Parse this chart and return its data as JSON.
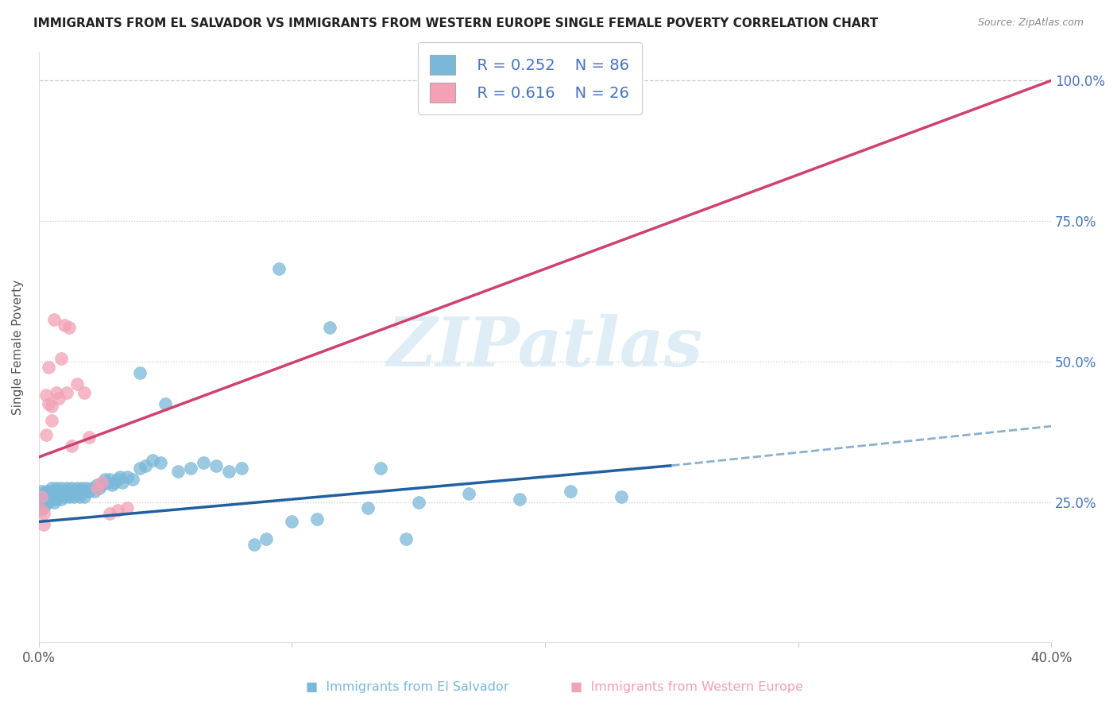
{
  "title": "IMMIGRANTS FROM EL SALVADOR VS IMMIGRANTS FROM WESTERN EUROPE SINGLE FEMALE POVERTY CORRELATION CHART",
  "source": "Source: ZipAtlas.com",
  "ylabel": "Single Female Poverty",
  "legend_r1": "R = 0.252",
  "legend_n1": "N = 86",
  "legend_r2": "R = 0.616",
  "legend_n2": "N = 26",
  "blue_color": "#7ab8d9",
  "pink_color": "#f4a0b5",
  "trend_blue": "#2060a0",
  "trend_pink": "#d04070",
  "dashed_color": "#8ab0d0",
  "watermark": "ZIPatlas",
  "watermark_color": "#c5dff0",
  "xlim": [
    0.0,
    0.4
  ],
  "ylim": [
    0.0,
    1.05
  ],
  "ytick_vals": [
    0.0,
    0.25,
    0.5,
    0.75,
    1.0
  ],
  "ytick_labels_right": [
    "",
    "25.0%",
    "50.0%",
    "75.0%",
    "100.0%"
  ],
  "xtick_labels": [
    "0.0%",
    "40.0%"
  ],
  "bottom_label1": "Immigrants from El Salvador",
  "bottom_label2": "Immigrants from Western Europe",
  "blue_line": [
    0.0,
    0.215,
    0.25,
    0.315
  ],
  "blue_line_dash": [
    0.25,
    0.315,
    0.4,
    0.385
  ],
  "pink_line": [
    0.0,
    0.33,
    0.4,
    1.0
  ],
  "blue_x": [
    0.001,
    0.001,
    0.001,
    0.002,
    0.002,
    0.002,
    0.003,
    0.003,
    0.003,
    0.004,
    0.004,
    0.004,
    0.005,
    0.005,
    0.005,
    0.006,
    0.006,
    0.006,
    0.007,
    0.007,
    0.007,
    0.008,
    0.008,
    0.009,
    0.009,
    0.009,
    0.01,
    0.01,
    0.011,
    0.011,
    0.012,
    0.012,
    0.013,
    0.013,
    0.014,
    0.014,
    0.015,
    0.015,
    0.016,
    0.016,
    0.017,
    0.018,
    0.018,
    0.019,
    0.02,
    0.021,
    0.022,
    0.023,
    0.024,
    0.025,
    0.026,
    0.027,
    0.028,
    0.029,
    0.03,
    0.031,
    0.032,
    0.033,
    0.035,
    0.037,
    0.04,
    0.042,
    0.045,
    0.048,
    0.055,
    0.06,
    0.065,
    0.07,
    0.075,
    0.08,
    0.085,
    0.09,
    0.1,
    0.11,
    0.13,
    0.15,
    0.17,
    0.19,
    0.21,
    0.23,
    0.04,
    0.05,
    0.095,
    0.115,
    0.135,
    0.145
  ],
  "blue_y": [
    0.27,
    0.26,
    0.24,
    0.265,
    0.255,
    0.24,
    0.27,
    0.26,
    0.25,
    0.27,
    0.26,
    0.25,
    0.275,
    0.265,
    0.255,
    0.27,
    0.26,
    0.25,
    0.275,
    0.265,
    0.255,
    0.27,
    0.26,
    0.275,
    0.265,
    0.255,
    0.27,
    0.26,
    0.275,
    0.265,
    0.27,
    0.26,
    0.275,
    0.265,
    0.27,
    0.26,
    0.275,
    0.265,
    0.27,
    0.26,
    0.275,
    0.27,
    0.26,
    0.275,
    0.27,
    0.275,
    0.27,
    0.28,
    0.275,
    0.28,
    0.29,
    0.285,
    0.29,
    0.28,
    0.285,
    0.29,
    0.295,
    0.285,
    0.295,
    0.29,
    0.31,
    0.315,
    0.325,
    0.32,
    0.305,
    0.31,
    0.32,
    0.315,
    0.305,
    0.31,
    0.175,
    0.185,
    0.215,
    0.22,
    0.24,
    0.25,
    0.265,
    0.255,
    0.27,
    0.26,
    0.48,
    0.425,
    0.665,
    0.56,
    0.31,
    0.185
  ],
  "pink_x": [
    0.001,
    0.001,
    0.002,
    0.002,
    0.003,
    0.003,
    0.004,
    0.004,
    0.005,
    0.005,
    0.006,
    0.007,
    0.008,
    0.009,
    0.01,
    0.011,
    0.012,
    0.013,
    0.015,
    0.018,
    0.02,
    0.023,
    0.025,
    0.028,
    0.031,
    0.035
  ],
  "pink_y": [
    0.26,
    0.235,
    0.23,
    0.21,
    0.44,
    0.37,
    0.49,
    0.425,
    0.395,
    0.42,
    0.575,
    0.445,
    0.435,
    0.505,
    0.565,
    0.445,
    0.56,
    0.35,
    0.46,
    0.445,
    0.365,
    0.275,
    0.285,
    0.23,
    0.235,
    0.24
  ]
}
